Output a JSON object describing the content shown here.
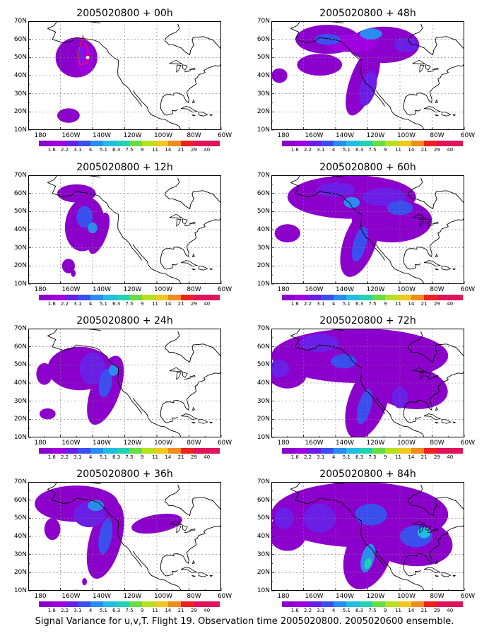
{
  "lat_labels": [
    "70N",
    "60N",
    "50N",
    "40N",
    "30N",
    "20N",
    "10N"
  ],
  "lon_labels": [
    "180",
    "160W",
    "140W",
    "120W",
    "100W",
    "80W",
    "60W"
  ],
  "colorbar": {
    "labels": [
      "1.6",
      "2.2",
      "3.1",
      "4",
      "5.1",
      "6.3",
      "7.5",
      "9",
      "11",
      "14",
      "21",
      "29",
      "40"
    ],
    "colors": [
      "#8c00cc",
      "#a000e0",
      "#6a1ee6",
      "#3a4fee",
      "#2a8cf0",
      "#22bde0",
      "#22d2b4",
      "#66dd44",
      "#b8e020",
      "#f0c81e",
      "#f08c1e",
      "#f02020",
      "#e0145a"
    ]
  },
  "panels": [
    {
      "id": "p00",
      "title": "2005020800 + 00h"
    },
    {
      "id": "p48",
      "title": "2005020800 + 48h"
    },
    {
      "id": "p12",
      "title": "2005020800 + 12h"
    },
    {
      "id": "p60",
      "title": "2005020800 + 60h"
    },
    {
      "id": "p24",
      "title": "2005020800 + 24h"
    },
    {
      "id": "p72",
      "title": "2005020800 + 72h"
    },
    {
      "id": "p36",
      "title": "2005020800 + 36h"
    },
    {
      "id": "p84",
      "title": "2005020800 + 84h"
    }
  ],
  "caption": "Signal Variance for u,v,T. Flight 19. Observation time 2005020800. 2005020600 ensemble."
}
